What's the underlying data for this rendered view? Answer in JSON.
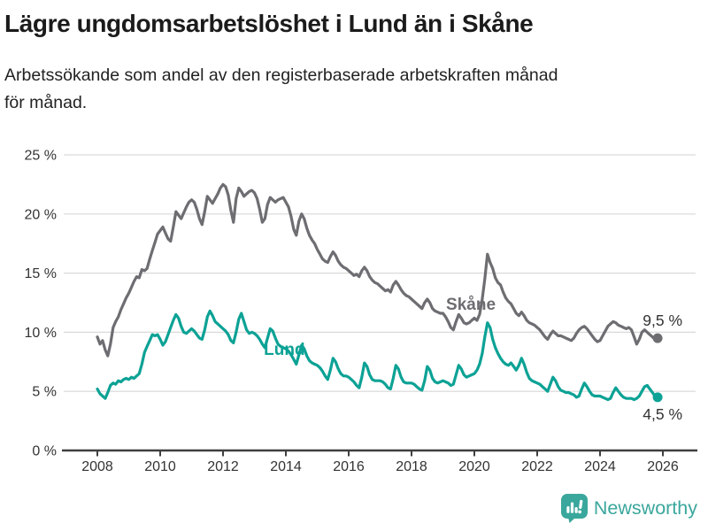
{
  "header": {
    "title": "Lägre ungdomsarbetslöshet i Lund än i Skåne",
    "subtitle_lines": [
      "Arbetssökande som andel av den registerbaserade arbetskraften månad",
      "för månad."
    ]
  },
  "chart_data": {
    "type": "line",
    "title": "Lägre ungdomsarbetslöshet i Lund än i Skåne",
    "subtitle": "Arbetssökande som andel av den registerbaserade arbetskraften månad för månad.",
    "unit": "%",
    "frequency": "monthly",
    "x_start_year": 2008,
    "x_tick_labels": [
      "2008",
      "2010",
      "2012",
      "2014",
      "2016",
      "2018",
      "2020",
      "2022",
      "2024",
      "2026"
    ],
    "y_tick_labels": [
      "0 %",
      "5 %",
      "10 %",
      "15 %",
      "20 %",
      "25 %"
    ],
    "ylim": [
      0,
      25
    ],
    "grid": "horizontal",
    "grid_color": "#d9d9d9",
    "axis_color": "#3f3f3f",
    "tick_label_color": "#333333",
    "series": [
      {
        "name": "Skåne",
        "color": "#6d6d72",
        "end_label": "9,5 %",
        "end_value": 9.5,
        "end_label_dy": -14,
        "values": [
          9.6,
          9.0,
          9.3,
          8.5,
          8.0,
          9.0,
          10.4,
          10.9,
          11.3,
          11.9,
          12.4,
          12.9,
          13.3,
          13.8,
          14.3,
          14.7,
          14.6,
          15.3,
          15.2,
          15.4,
          16.2,
          16.9,
          17.6,
          18.3,
          18.6,
          18.9,
          18.4,
          17.9,
          17.7,
          18.9,
          20.2,
          19.9,
          19.6,
          20.1,
          20.6,
          21.0,
          21.2,
          21.0,
          20.4,
          19.6,
          19.1,
          20.2,
          21.5,
          21.2,
          20.9,
          21.3,
          21.7,
          22.2,
          22.5,
          22.3,
          21.6,
          20.3,
          19.3,
          21.3,
          22.2,
          21.9,
          21.5,
          21.7,
          21.9,
          22.0,
          21.8,
          21.3,
          20.4,
          19.3,
          19.6,
          20.8,
          21.4,
          21.2,
          21.0,
          21.2,
          21.3,
          21.4,
          21.0,
          20.6,
          19.8,
          18.7,
          18.2,
          19.4,
          20.0,
          19.6,
          18.8,
          18.2,
          17.8,
          17.5,
          17.0,
          16.6,
          16.2,
          16.0,
          15.9,
          16.4,
          16.8,
          16.5,
          16.0,
          15.7,
          15.5,
          15.4,
          15.2,
          15.0,
          14.8,
          14.9,
          14.7,
          15.2,
          15.5,
          15.2,
          14.7,
          14.4,
          14.2,
          14.1,
          13.9,
          13.7,
          13.5,
          13.6,
          13.4,
          14.0,
          14.3,
          14.0,
          13.6,
          13.3,
          13.1,
          13.0,
          12.8,
          12.6,
          12.4,
          12.2,
          12.0,
          12.5,
          12.8,
          12.5,
          12.0,
          11.8,
          11.7,
          11.6,
          11.6,
          11.3,
          10.9,
          10.4,
          10.2,
          10.9,
          11.5,
          11.2,
          10.8,
          10.7,
          10.8,
          11.0,
          11.2,
          11.0,
          11.5,
          12.8,
          14.5,
          16.6,
          15.9,
          15.4,
          14.6,
          14.2,
          14.0,
          13.4,
          12.9,
          12.6,
          12.4,
          12.0,
          11.6,
          11.4,
          11.7,
          11.4,
          11.0,
          10.8,
          10.7,
          10.6,
          10.4,
          10.2,
          9.9,
          9.6,
          9.4,
          9.8,
          10.1,
          9.9,
          9.7,
          9.7,
          9.6,
          9.5,
          9.4,
          9.3,
          9.5,
          9.9,
          10.2,
          10.4,
          10.5,
          10.3,
          10.0,
          9.7,
          9.4,
          9.2,
          9.3,
          9.7,
          10.1,
          10.5,
          10.7,
          10.9,
          10.8,
          10.6,
          10.5,
          10.4,
          10.3,
          10.4,
          10.2,
          9.6,
          9.0,
          9.4,
          10.0,
          10.2,
          10.0,
          9.8,
          9.6,
          9.4,
          9.5
        ]
      },
      {
        "name": "Lund",
        "color": "#0ca295",
        "end_label": "4,5 %",
        "end_value": 4.5,
        "end_label_dy": 25,
        "values": [
          5.2,
          4.8,
          4.6,
          4.4,
          4.9,
          5.5,
          5.7,
          5.6,
          5.9,
          5.8,
          6.0,
          6.1,
          6.0,
          6.2,
          6.1,
          6.3,
          6.5,
          7.3,
          8.3,
          8.8,
          9.3,
          9.8,
          9.7,
          9.8,
          9.4,
          8.9,
          9.2,
          9.8,
          10.4,
          11.0,
          11.5,
          11.2,
          10.5,
          10.0,
          9.9,
          10.1,
          10.3,
          10.1,
          9.8,
          9.5,
          9.4,
          10.2,
          11.3,
          11.8,
          11.4,
          10.9,
          10.7,
          10.5,
          10.3,
          10.1,
          9.8,
          9.3,
          9.1,
          10.0,
          11.1,
          11.6,
          10.9,
          10.2,
          9.9,
          10.0,
          9.9,
          9.7,
          9.4,
          9.0,
          8.7,
          9.5,
          10.3,
          10.1,
          9.5,
          9.0,
          8.8,
          8.7,
          8.6,
          8.4,
          8.1,
          7.7,
          7.3,
          8.1,
          8.9,
          8.6,
          8.0,
          7.6,
          7.4,
          7.3,
          7.2,
          7.0,
          6.7,
          6.3,
          6.0,
          6.8,
          7.8,
          7.5,
          6.9,
          6.5,
          6.3,
          6.3,
          6.2,
          6.0,
          5.8,
          5.5,
          5.3,
          6.2,
          7.4,
          7.1,
          6.4,
          6.0,
          5.9,
          5.9,
          5.9,
          5.8,
          5.6,
          5.3,
          5.2,
          6.1,
          7.2,
          6.9,
          6.2,
          5.8,
          5.7,
          5.7,
          5.7,
          5.6,
          5.4,
          5.2,
          5.1,
          5.9,
          7.1,
          6.8,
          6.1,
          5.8,
          5.7,
          5.8,
          5.9,
          5.8,
          5.7,
          5.5,
          5.6,
          6.4,
          7.2,
          6.9,
          6.4,
          6.2,
          6.3,
          6.4,
          6.5,
          6.8,
          7.3,
          8.2,
          9.6,
          10.8,
          10.4,
          9.4,
          8.7,
          8.2,
          7.8,
          7.5,
          7.3,
          7.2,
          7.4,
          7.1,
          6.8,
          7.2,
          7.8,
          7.3,
          6.6,
          6.1,
          5.9,
          5.8,
          5.7,
          5.6,
          5.4,
          5.2,
          5.0,
          5.6,
          6.2,
          5.9,
          5.4,
          5.1,
          5.0,
          4.9,
          4.9,
          4.8,
          4.7,
          4.5,
          4.6,
          5.2,
          5.7,
          5.4,
          5.0,
          4.7,
          4.6,
          4.6,
          4.6,
          4.5,
          4.4,
          4.3,
          4.4,
          4.9,
          5.3,
          5.0,
          4.7,
          4.5,
          4.4,
          4.4,
          4.4,
          4.3,
          4.4,
          4.6,
          5.0,
          5.4,
          5.5,
          5.2,
          4.9,
          4.6,
          4.5
        ]
      }
    ],
    "series_labels": [
      {
        "text": "Skåne",
        "year": 2019.1,
        "pct": 11.9,
        "color": "#6d6d72"
      },
      {
        "text": "Lund",
        "year": 2013.3,
        "pct": 8.1,
        "color": "#0ca295"
      }
    ]
  },
  "footer": {
    "brand": "Newsworthy",
    "brand_color": "#3aa79c"
  }
}
